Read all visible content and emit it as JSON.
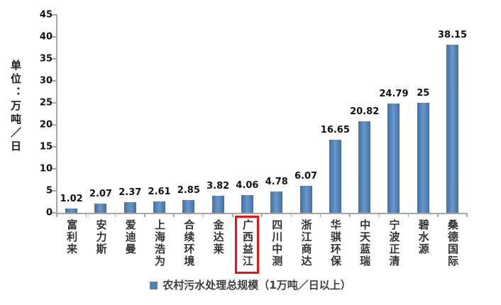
{
  "chart_data": {
    "type": "bar",
    "title": "",
    "legend": "农村污水处理总规模（1万吨／日以上）",
    "legend_position": "bottom",
    "ylabel": "单位：万吨／日",
    "categories": [
      "富利来",
      "安力斯",
      "爱迪曼",
      "上海浩为",
      "合续环境",
      "金达莱",
      "广西益江",
      "四川中测",
      "浙江商达",
      "华骐环保",
      "中天蓝瑞",
      "宁波正清",
      "碧水源",
      "桑德国际"
    ],
    "values": [
      1.02,
      2.07,
      2.37,
      2.61,
      2.85,
      3.82,
      4.06,
      4.78,
      6.07,
      16.65,
      20.82,
      24.79,
      25,
      38.15
    ],
    "value_labels": [
      "1.02",
      "2.07",
      "2.37",
      "2.61",
      "2.85",
      "3.82",
      "4.06",
      "4.78",
      "6.07",
      "16.65",
      "20.82",
      "24.79",
      "25",
      "38.15"
    ],
    "y_ticks": [
      0,
      5,
      10,
      15,
      20,
      25,
      30,
      35,
      40,
      45
    ],
    "ylim": [
      0,
      45
    ],
    "grid": false,
    "highlight": {
      "category": "广西益江",
      "index": 6,
      "box_color": "#ee1111"
    },
    "colors": {
      "bar": "#4f81bd",
      "axis": "#a6a6a6",
      "value_text": "#111111",
      "category_text": "#333333",
      "legend_text": "#3f3f3f",
      "y_unit_text": "#1a1a1a",
      "background": "#ffffff"
    }
  }
}
